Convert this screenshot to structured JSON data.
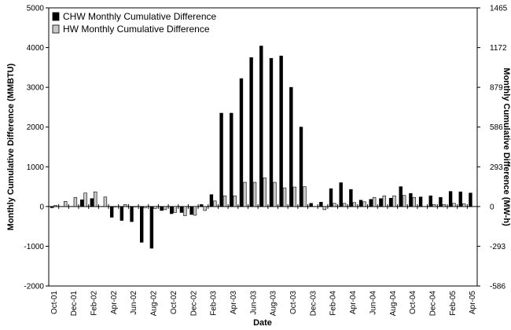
{
  "chart_data": {
    "type": "bar",
    "xlabel": "Date",
    "ylabel": "Monthly Cumulative Difference (MMBTU)",
    "y2label": "Monthly Cumulative Difference (MW-h)",
    "ylim": [
      -2000,
      5000
    ],
    "yticks": [
      "-2000",
      "-1000",
      "0",
      "1000",
      "2000",
      "3000",
      "4000",
      "5000"
    ],
    "y2ticks": [
      "-586",
      "-293",
      "0",
      "293",
      "586",
      "879",
      "1172",
      "1465"
    ],
    "legend_position": "top-left",
    "grid": false,
    "categories": [
      "Oct-01",
      "Nov-01",
      "Dec-01",
      "Jan-02",
      "Feb-02",
      "Mar-02",
      "Apr-02",
      "May-02",
      "Jun-02",
      "Jul-02",
      "Aug-02",
      "Sep-02",
      "Oct-02",
      "Nov-02",
      "Dec-02",
      "Jan-03",
      "Feb-03",
      "Mar-03",
      "Apr-03",
      "May-03",
      "Jun-03",
      "Jul-03",
      "Aug-03",
      "Sep-03",
      "Oct-03",
      "Nov-03",
      "Dec-03",
      "Jan-04",
      "Feb-04",
      "Mar-04",
      "Apr-04",
      "May-04",
      "Jun-04",
      "Jul-04",
      "Aug-04",
      "Sep-04",
      "Oct-04",
      "Nov-04",
      "Dec-04",
      "Jan-05",
      "Feb-05",
      "Mar-05",
      "Apr-05"
    ],
    "xticklabels": [
      "Oct-01",
      "Dec-01",
      "Feb-02",
      "Apr-02",
      "Jun-02",
      "Aug-02",
      "Oct-02",
      "Dec-02",
      "Feb-03",
      "Apr-03",
      "Jun-03",
      "Aug-03",
      "Oct-03",
      "Dec-03",
      "Feb-04",
      "Apr-04",
      "Jun-04",
      "Aug-04",
      "Oct-04",
      "Dec-04",
      "Feb-05",
      "Apr-05"
    ],
    "series": [
      {
        "name": "CHW Monthly Cumulative Difference",
        "color": "#000000",
        "values": [
          -30,
          0,
          0,
          170,
          200,
          0,
          -270,
          -350,
          -380,
          -900,
          -1050,
          -100,
          -180,
          -150,
          -200,
          50,
          300,
          2350,
          2350,
          3220,
          3750,
          4040,
          3730,
          3790,
          3000,
          2000,
          80,
          110,
          450,
          600,
          430,
          160,
          180,
          200,
          210,
          500,
          330,
          240,
          270,
          230,
          380,
          370,
          340
        ]
      },
      {
        "name": "HW Monthly Cumulative Difference",
        "color": "#c8c8c8",
        "values": [
          30,
          130,
          230,
          340,
          370,
          240,
          -10,
          50,
          -10,
          -30,
          -50,
          -80,
          -150,
          -230,
          -220,
          -100,
          140,
          270,
          270,
          610,
          610,
          720,
          610,
          470,
          490,
          500,
          0,
          -80,
          80,
          80,
          100,
          120,
          230,
          270,
          270,
          280,
          230,
          0,
          50,
          50,
          80,
          70,
          0
        ]
      }
    ]
  }
}
